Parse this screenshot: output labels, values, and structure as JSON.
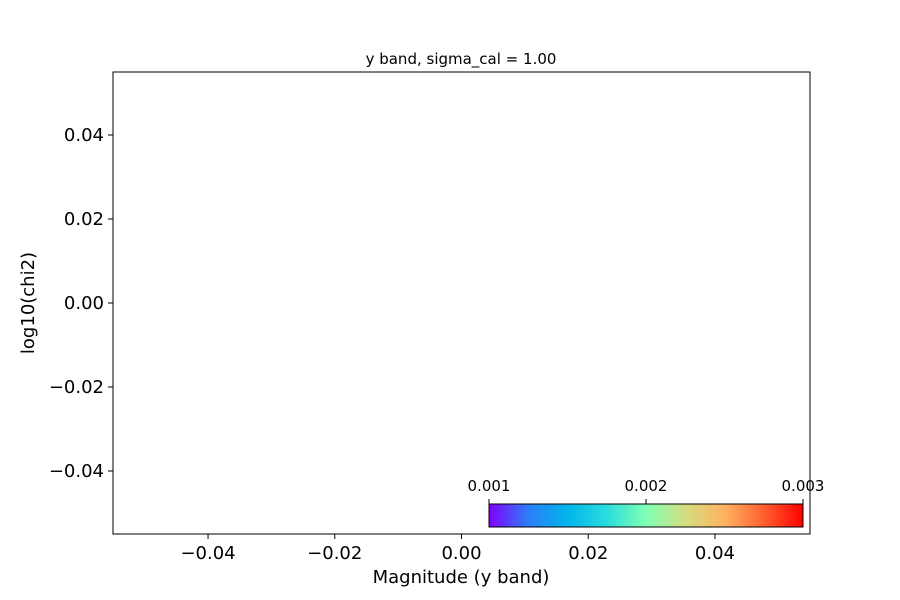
{
  "chart_data": {
    "type": "scatter",
    "title": "y band, sigma_cal = 1.00",
    "xlabel": "Magnitude (y band)",
    "ylabel": "log10(chi2)",
    "xlim": [
      -0.055,
      0.055
    ],
    "ylim": [
      -0.055,
      0.055
    ],
    "x_ticks": [
      -0.04,
      -0.02,
      0.0,
      0.02,
      0.04
    ],
    "x_tick_labels": [
      "−0.04",
      "−0.02",
      "0.00",
      "0.02",
      "0.04"
    ],
    "y_ticks": [
      0.04,
      0.02,
      0.0,
      -0.02,
      -0.04
    ],
    "y_tick_labels": [
      "0.04",
      "0.02",
      "0.00",
      "−0.02",
      "−0.04"
    ],
    "grid": false,
    "points": [],
    "colorbar": {
      "colormap": "rainbow",
      "range": [
        0.001,
        0.003
      ],
      "ticks": [
        0.001,
        0.002,
        0.003
      ],
      "tick_labels": [
        "0.001",
        "0.002",
        "0.003"
      ],
      "orientation": "horizontal",
      "placement": "inset lower-right",
      "colors": [
        "#8000ff",
        "#2c7ef7",
        "#00b5eb",
        "#2adddd",
        "#80ffb4",
        "#d4dd80",
        "#ffb360",
        "#ff6030",
        "#ff0000"
      ]
    }
  }
}
